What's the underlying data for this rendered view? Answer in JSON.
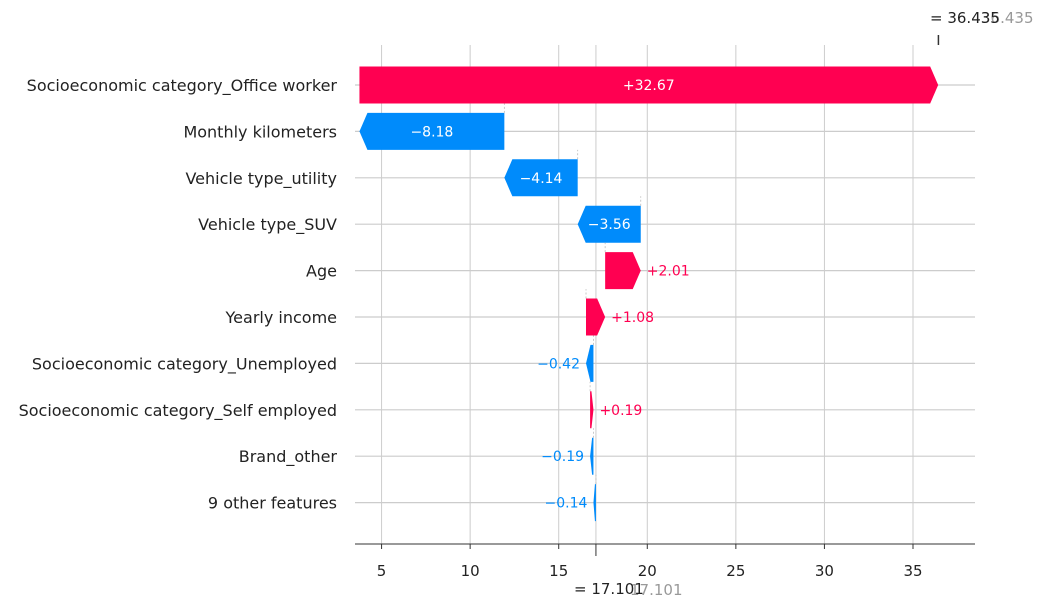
{
  "chart_data": {
    "type": "waterfall",
    "base_value": 17.101,
    "final_value": 36.435,
    "base_label": "= 17.101",
    "base_label_ghost": "17.101",
    "final_label": "= 36.435",
    "final_label_ghost": "36.435",
    "xlim": [
      3.5,
      38.5
    ],
    "xticks": [
      5,
      10,
      15,
      20,
      25,
      30,
      35
    ],
    "features": [
      {
        "name": "Socioeconomic category_Office worker",
        "contribution": 32.67,
        "label": "+32.67"
      },
      {
        "name": "Monthly kilometers",
        "contribution": -8.18,
        "label": "−8.18"
      },
      {
        "name": "Vehicle type_utility",
        "contribution": -4.14,
        "label": "−4.14"
      },
      {
        "name": "Vehicle type_SUV",
        "contribution": -3.56,
        "label": "−3.56"
      },
      {
        "name": "Age",
        "contribution": 2.01,
        "label": "+2.01"
      },
      {
        "name": "Yearly income",
        "contribution": 1.08,
        "label": "+1.08"
      },
      {
        "name": "Socioeconomic category_Unemployed",
        "contribution": -0.42,
        "label": "−0.42"
      },
      {
        "name": "Socioeconomic category_Self employed",
        "contribution": 0.19,
        "label": "+0.19"
      },
      {
        "name": "Brand_other",
        "contribution": -0.19,
        "label": "−0.19"
      },
      {
        "name": "9 other features",
        "contribution": -0.14,
        "label": "−0.14"
      }
    ],
    "colors": {
      "positive": "#ff0051",
      "negative": "#008bfb",
      "grid": "#cccccc",
      "axis": "#333333",
      "text": "#222222",
      "ghost": "#999999"
    }
  }
}
